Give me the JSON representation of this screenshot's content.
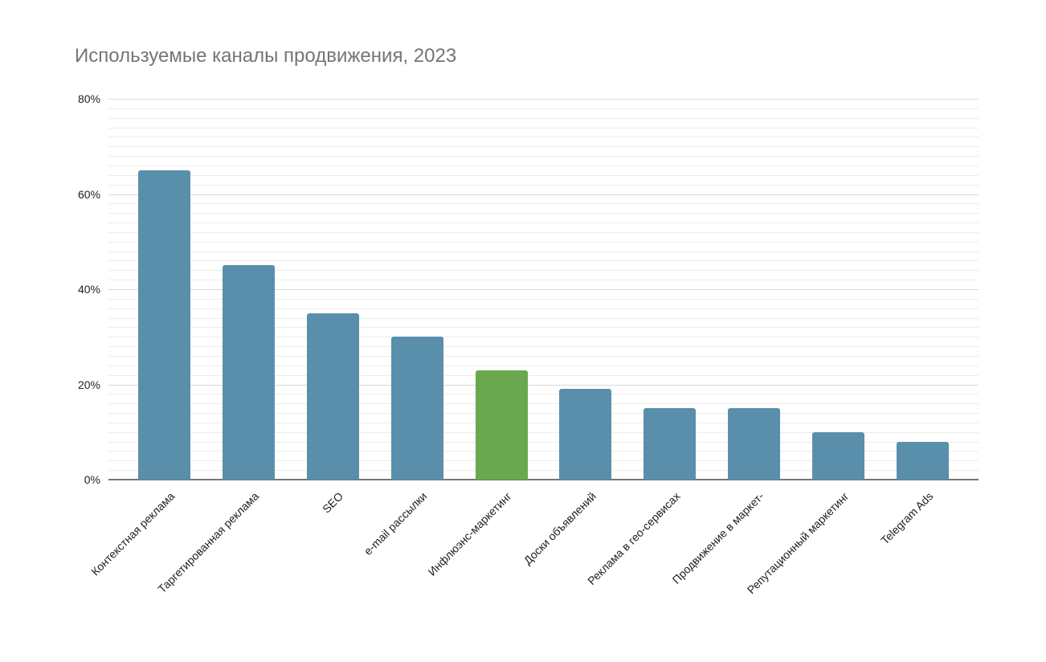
{
  "chart_data": {
    "type": "bar",
    "title": "Используемые каналы продвижения, 2023",
    "categories": [
      "Контекстная реклама",
      "Таргетированная реклама",
      "SEO",
      "e-mail рассылки",
      "Инфлюэнс-маркетинг",
      "Доски объявлений",
      "Реклама в гео-сервисах",
      "Продвижение в маркет-",
      "Репутационный маркетинг",
      "Telegram Ads"
    ],
    "values": [
      65,
      45,
      35,
      30,
      23,
      19,
      15,
      15,
      10,
      8
    ],
    "unit": "%",
    "ylim": [
      0,
      80
    ],
    "y_major_step": 20,
    "y_minor_step": 2,
    "y_tick_labels": [
      "0%",
      "20%",
      "40%",
      "60%",
      "80%"
    ],
    "grid": "on",
    "legend": "none",
    "colors": {
      "bar": "#5a8fac",
      "highlight": "#6aa84f",
      "title_text": "#757575",
      "tick_text": "#1f1f1f",
      "major_grid": "#d9d9d9",
      "minor_grid": "#ececec",
      "axis_line": "#757575"
    },
    "highlight_index": 4
  }
}
